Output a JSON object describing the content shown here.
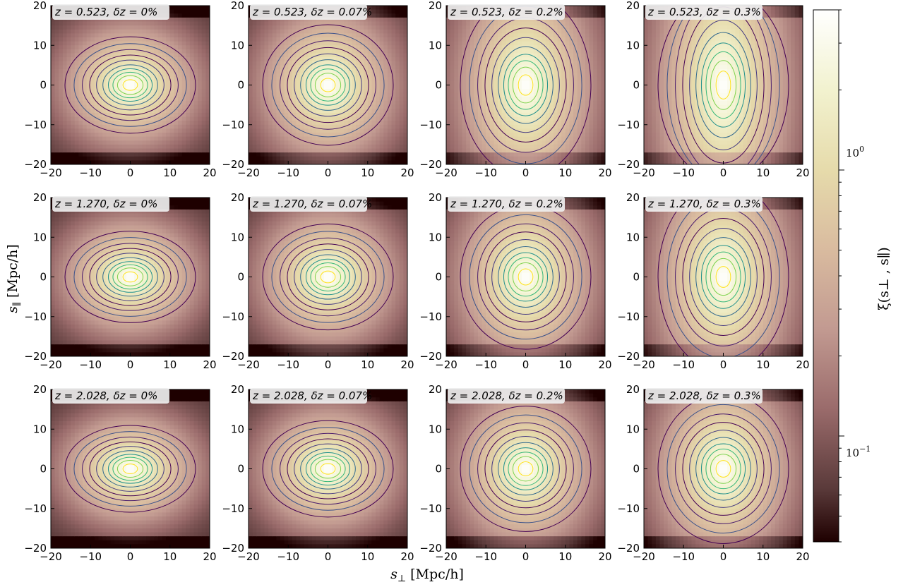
{
  "chart_data": {
    "type": "heatmap",
    "description_variable": "xi(s_perp, s_par)",
    "panels": [
      {
        "title": "z = 0.523, δz = 0%",
        "z": 0.523,
        "dz_percent": 0.0,
        "stretch": 1.0
      },
      {
        "title": "z = 0.523, δz = 0.07%",
        "z": 0.523,
        "dz_percent": 0.07,
        "stretch": 1.25
      },
      {
        "title": "z = 0.523, δz = 0.2%",
        "z": 0.523,
        "dz_percent": 0.2,
        "stretch": 1.9
      },
      {
        "title": "z = 0.523, δz = 0.3%",
        "z": 0.523,
        "dz_percent": 0.3,
        "stretch": 2.6
      },
      {
        "title": "z = 1.270, δz = 0%",
        "z": 1.27,
        "dz_percent": 0.0,
        "stretch": 0.95
      },
      {
        "title": "z = 1.270, δz = 0.07%",
        "z": 1.27,
        "dz_percent": 0.07,
        "stretch": 1.1
      },
      {
        "title": "z = 1.270, δz = 0.2%",
        "z": 1.27,
        "dz_percent": 0.2,
        "stretch": 1.5
      },
      {
        "title": "z = 1.270, δz = 0.3%",
        "z": 1.27,
        "dz_percent": 0.3,
        "stretch": 1.95
      },
      {
        "title": "z = 2.028, δz = 0%",
        "z": 2.028,
        "dz_percent": 0.0,
        "stretch": 0.9
      },
      {
        "title": "z = 2.028, δz = 0.07%",
        "z": 2.028,
        "dz_percent": 0.07,
        "stretch": 1.0
      },
      {
        "title": "z = 2.028, δz = 0.2%",
        "z": 2.028,
        "dz_percent": 0.2,
        "stretch": 1.3
      },
      {
        "title": "z = 2.028, δz = 0.3%",
        "z": 2.028,
        "dz_percent": 0.3,
        "stretch": 1.55
      }
    ],
    "xlabel": "s⊥ [Mpc/h]",
    "ylabel": "s∥ [Mpc/h]",
    "xlim": [
      -20,
      20
    ],
    "ylim": [
      -20,
      20
    ],
    "xticks": [
      -20,
      -10,
      0,
      10,
      20
    ],
    "yticks": [
      -20,
      -10,
      0,
      10,
      20
    ],
    "colorbar": {
      "label": "ξ(s⊥ , s∥)",
      "scale": "log",
      "vmin": 0.04,
      "vmax": 4.0,
      "ticks": [
        {
          "value": 1.0,
          "label": "10^0"
        },
        {
          "value": 0.1,
          "label": "10^-1"
        }
      ],
      "colormap": "pink",
      "contour_colormap": "viridis"
    },
    "grid": false
  },
  "labels": {
    "xlabel_main": "s",
    "xlabel_sub": "⊥",
    "xlabel_unit": " [Mpc/h]",
    "ylabel_main": "s",
    "ylabel_sub": "∥",
    "ylabel_unit": " [Mpc/h]",
    "cb_label": "ξ(s⊥ , s∥)",
    "cb_tick_1_base": "10",
    "cb_tick_1_exp": "0",
    "cb_tick_2_base": "10",
    "cb_tick_2_exp": "−1"
  }
}
